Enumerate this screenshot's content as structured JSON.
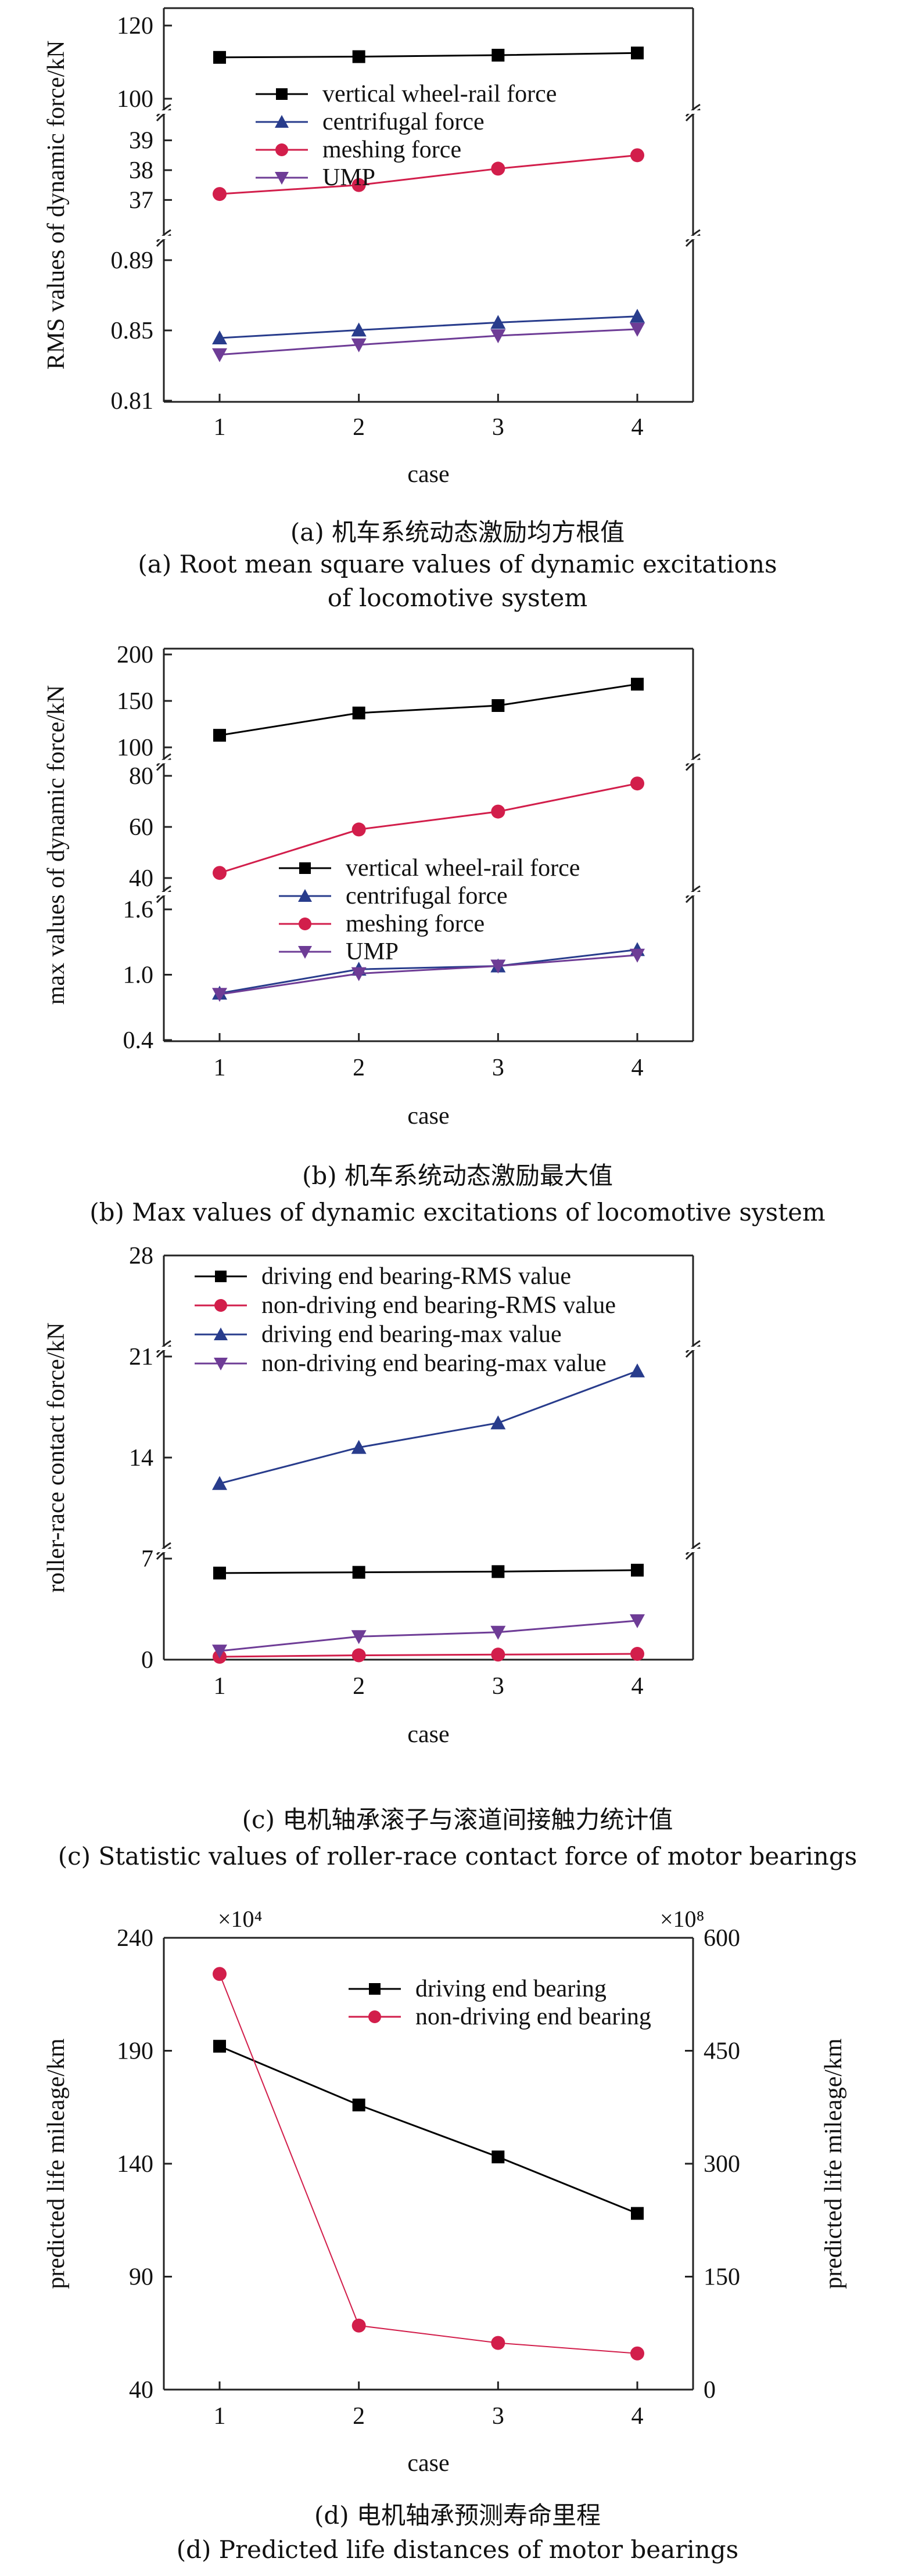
{
  "chart_data": [
    {
      "type": "line",
      "ylabel": "RMS values of dynamic force/kN",
      "xlabel": "case",
      "x": [
        1,
        2,
        3,
        4
      ],
      "caption_cn": "(a) 机车系统动态激励均方根值",
      "caption_en": "(a) Root mean square values of dynamic excitations of locomotive system",
      "broken_axis": [
        {
          "ylim": [
            100,
            120
          ],
          "ticks": [
            "100",
            "120"
          ]
        },
        {
          "ylim": [
            36.5,
            39.5
          ],
          "ticks": [
            "37",
            "38",
            "39"
          ]
        },
        {
          "ylim": [
            0.81,
            0.89
          ],
          "ticks": [
            "0.81",
            "0.85",
            "0.89"
          ]
        }
      ],
      "legend_position": "top",
      "series": [
        {
          "name": "vertical wheel-rail force",
          "color": "#000000",
          "marker": "square",
          "panel": 0,
          "values": [
            111.3,
            111.5,
            111.9,
            112.5
          ]
        },
        {
          "name": "centrifugal force",
          "color": "#283c8c",
          "marker": "triangle-up",
          "panel": 2,
          "values": [
            0.8457,
            0.8502,
            0.8545,
            0.858
          ]
        },
        {
          "name": "meshing force",
          "color": "#d21e4b",
          "marker": "circle",
          "panel": 1,
          "values": [
            37.2,
            37.5,
            38.05,
            38.5
          ]
        },
        {
          "name": "UMP",
          "color": "#6e3c96",
          "marker": "triangle-down",
          "panel": 2,
          "values": [
            0.8362,
            0.8418,
            0.847,
            0.8507
          ]
        }
      ]
    },
    {
      "type": "line",
      "ylabel": "max values of dynamic force/kN",
      "xlabel": "case",
      "x": [
        1,
        2,
        3,
        4
      ],
      "caption_cn": "(b) 机车系统动态激励最大值",
      "caption_en": "(b) Max values of dynamic excitations of locomotive system",
      "broken_axis": [
        {
          "ylim": [
            100,
            200
          ],
          "ticks": [
            "100",
            "150",
            "200"
          ]
        },
        {
          "ylim": [
            40,
            80
          ],
          "ticks": [
            "40",
            "60",
            "80"
          ]
        },
        {
          "ylim": [
            0.4,
            1.6
          ],
          "ticks": [
            "0.4",
            "1.0",
            "1.6"
          ]
        }
      ],
      "legend_position": "middle",
      "series": [
        {
          "name": "vertical wheel-rail force",
          "color": "#000000",
          "marker": "square",
          "panel": 0,
          "values": [
            113,
            137,
            145,
            168
          ]
        },
        {
          "name": "centrifugal force",
          "color": "#283c8c",
          "marker": "triangle-up",
          "panel": 2,
          "values": [
            0.83,
            1.05,
            1.08,
            1.23
          ]
        },
        {
          "name": "meshing force",
          "color": "#d21e4b",
          "marker": "circle",
          "panel": 1,
          "values": [
            42,
            59,
            66,
            77
          ]
        },
        {
          "name": "UMP",
          "color": "#6e3c96",
          "marker": "triangle-down",
          "panel": 2,
          "values": [
            0.82,
            1.01,
            1.08,
            1.18
          ]
        }
      ]
    },
    {
      "type": "line",
      "ylabel": "roller-race contact force/kN",
      "xlabel": "case",
      "x": [
        1,
        2,
        3,
        4
      ],
      "caption_cn": "(c) 电机轴承滚子与滚道间接触力统计值",
      "caption_en": "(c) Statistic values of roller-race contact force of motor bearings",
      "ylim": [
        0,
        28
      ],
      "yticks": [
        "0",
        "7",
        "14",
        "21",
        "28"
      ],
      "axis_breaks": [
        7,
        21
      ],
      "legend_position": "top",
      "series": [
        {
          "name": "driving end bearing-RMS value",
          "color": "#000000",
          "marker": "square",
          "values": [
            6.0,
            6.05,
            6.1,
            6.2
          ]
        },
        {
          "name": "non-driving end bearing-RMS value",
          "color": "#d21e4b",
          "marker": "circle",
          "values": [
            0.2,
            0.3,
            0.35,
            0.4
          ]
        },
        {
          "name": "driving end bearing-max value",
          "color": "#283c8c",
          "marker": "triangle-up",
          "values": [
            12.2,
            14.7,
            16.4,
            20.0
          ]
        },
        {
          "name": "non-driving end bearing-max value",
          "color": "#6e3c96",
          "marker": "triangle-down",
          "values": [
            0.6,
            1.6,
            1.9,
            2.7
          ]
        }
      ]
    },
    {
      "type": "line",
      "ylabel": "predicted life mileage/km",
      "y2label": "predicted life mileage/km",
      "xlabel": "case",
      "x": [
        1,
        2,
        3,
        4
      ],
      "caption_cn": "(d) 电机轴承预测寿命里程",
      "caption_en": "(d) Predicted life distances of motor bearings",
      "y_multiplier": "×10⁴",
      "y2_multiplier": "×10⁸",
      "ylim": [
        40,
        240
      ],
      "yticks": [
        "40",
        "90",
        "140",
        "190",
        "240"
      ],
      "y2lim": [
        0,
        600
      ],
      "y2ticks": [
        "0",
        "150",
        "300",
        "450",
        "600"
      ],
      "legend_position": "top-right",
      "series": [
        {
          "name": "driving end bearing",
          "color": "#000000",
          "marker": "square",
          "axis": "left",
          "values": [
            192,
            166,
            143,
            118
          ]
        },
        {
          "name": "non-driving end bearing",
          "color": "#d21e4b",
          "marker": "circle",
          "axis": "right",
          "values": [
            552,
            85,
            62,
            48
          ]
        }
      ]
    }
  ]
}
